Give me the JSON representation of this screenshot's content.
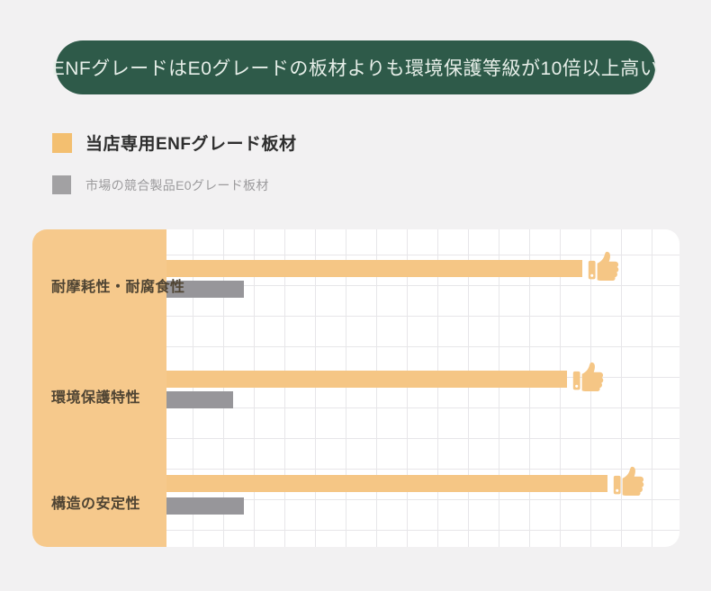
{
  "banner": {
    "text": "ENFグレードはE0グレードの板材よりも環境保護等級が10倍以上高い"
  },
  "legend": [
    {
      "label": "当店専用ENFグレード板材",
      "color": "#F3BF70"
    },
    {
      "label": "市場の競合製品E0グレード板材",
      "color": "#A2A1A3"
    }
  ],
  "chart_data": {
    "type": "bar",
    "orientation": "horizontal",
    "title": "ENFグレードはE0グレードの板材よりも環境保護等級が10倍以上高い",
    "categories": [
      "耐摩耗性・耐腐食性",
      "環境保護特性",
      "構造の安定性"
    ],
    "series": [
      {
        "name": "当店専用ENFグレード板材",
        "color": "#F5C685",
        "values_pct": [
          81,
          78,
          86
        ],
        "marker": "thumbs-up"
      },
      {
        "name": "市場の競合製品E0グレード板材",
        "color": "#97969A",
        "values_pct": [
          15,
          13,
          15
        ]
      }
    ],
    "xlim": [
      0,
      100
    ],
    "grid": true,
    "legend_position": "top-left"
  },
  "icons": {
    "thumbs_up": "thumbs-up-icon"
  },
  "colors": {
    "page_bg": "#F2F1F2",
    "banner_bg": "#2E5A49",
    "banner_text": "#E6EEE8",
    "orange_panel": "#F6C98C",
    "orange_bar": "#F5C685",
    "gray_bar": "#97969A",
    "grid_line": "#E7E6E9",
    "category_text": "#4F4433"
  }
}
